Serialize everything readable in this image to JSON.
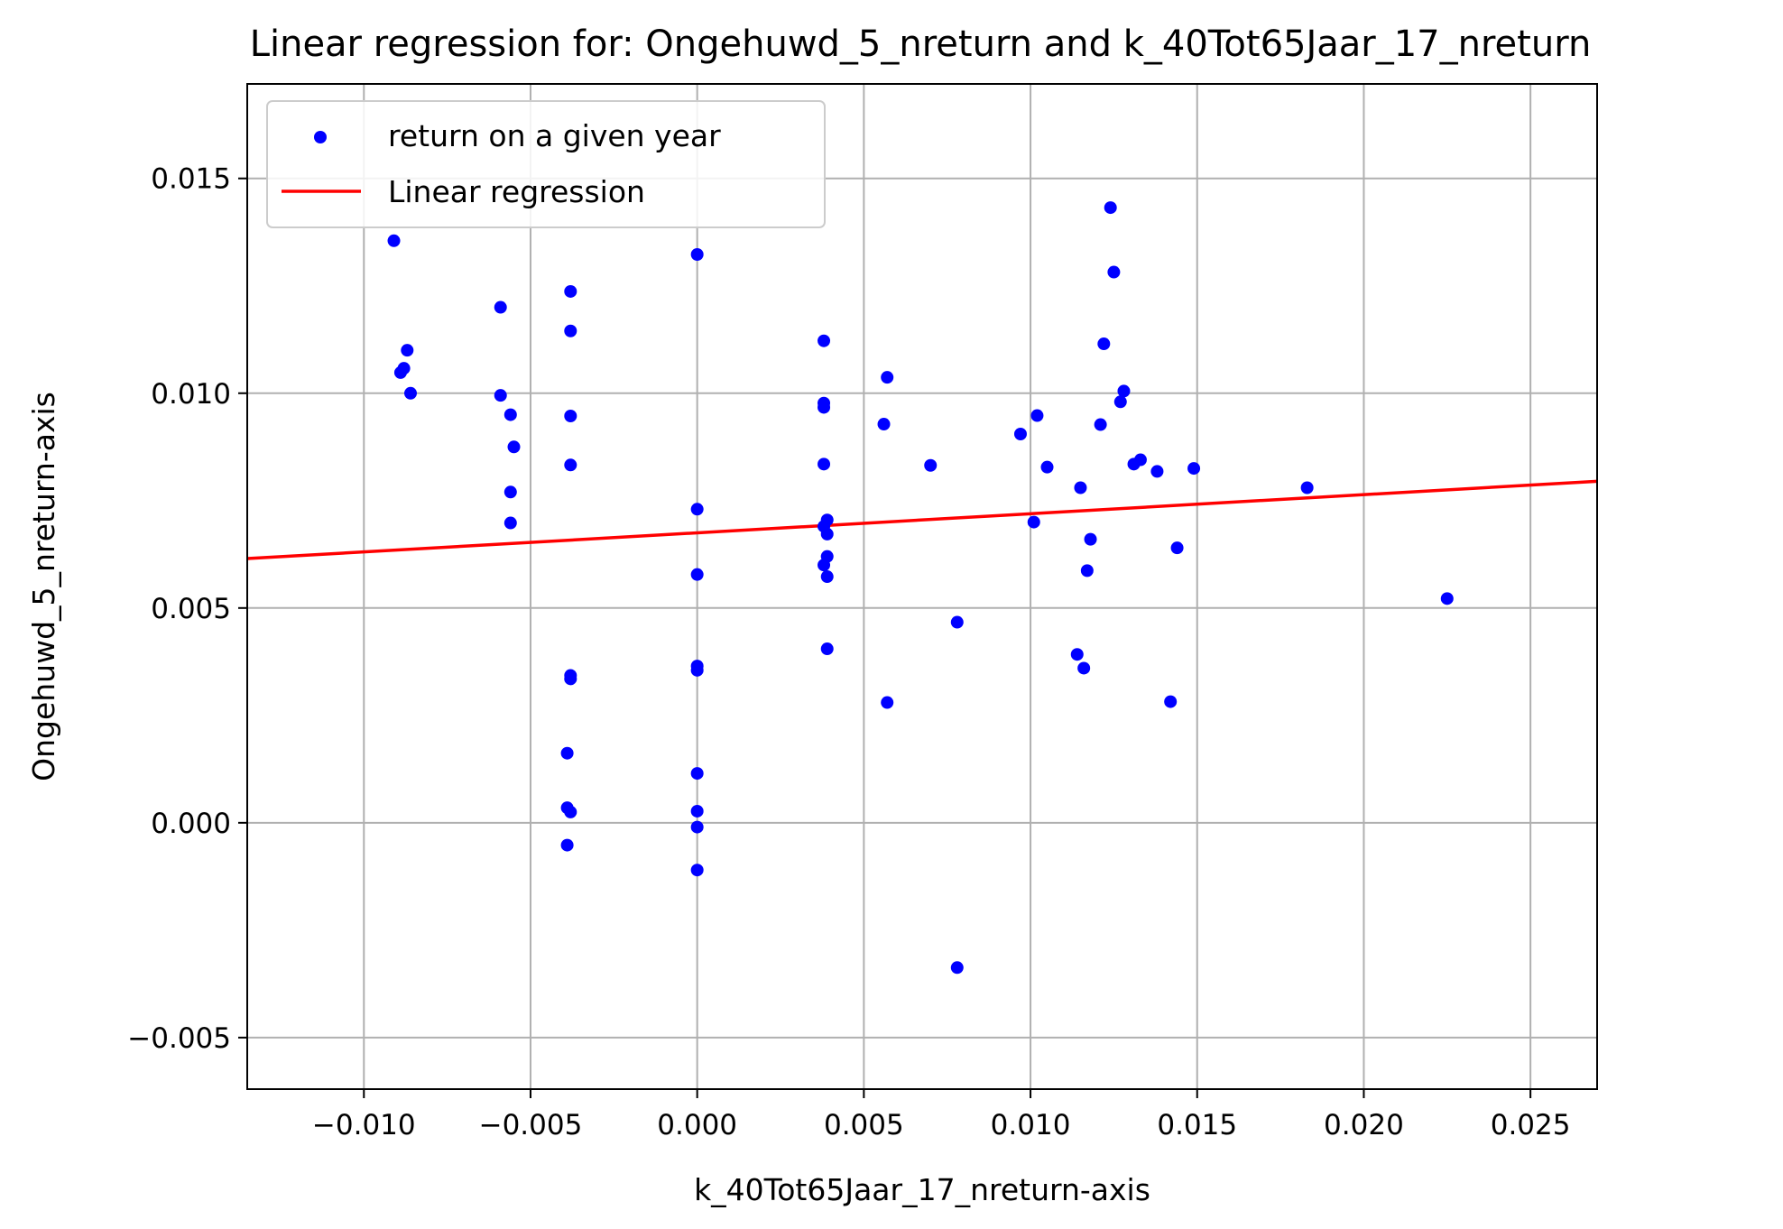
{
  "chart_data": {
    "type": "scatter",
    "title": "Linear regression for: Ongehuwd_5_nreturn and k_40Tot65Jaar_17_nreturn",
    "xlabel": "k_40Tot65Jaar_17_nreturn-axis",
    "ylabel": "Ongehuwd_5_nreturn-axis",
    "xlim": [
      -0.0135,
      0.027
    ],
    "ylim": [
      -0.0062,
      0.0172
    ],
    "grid": true,
    "legend_position": "top-left",
    "x_ticks": [
      -0.01,
      -0.005,
      0.0,
      0.005,
      0.01,
      0.015,
      0.02,
      0.025
    ],
    "x_tick_labels": [
      "−0.010",
      "−0.005",
      "0.000",
      "0.005",
      "0.010",
      "0.015",
      "0.020",
      "0.025"
    ],
    "y_ticks": [
      -0.005,
      0.0,
      0.005,
      0.01,
      0.015
    ],
    "y_tick_labels": [
      "−0.005",
      "0.000",
      "0.005",
      "0.010",
      "0.015"
    ],
    "series": [
      {
        "name": "return on a given year",
        "kind": "scatter",
        "color": "#0000ff",
        "points": [
          [
            -0.0091,
            0.01355
          ],
          [
            -0.0087,
            0.011
          ],
          [
            -0.0088,
            0.01058
          ],
          [
            -0.0089,
            0.01048
          ],
          [
            -0.0086,
            0.01
          ],
          [
            -0.0059,
            0.012
          ],
          [
            -0.0059,
            0.00995
          ],
          [
            -0.0056,
            0.0095
          ],
          [
            -0.0055,
            0.00875
          ],
          [
            -0.0056,
            0.0077
          ],
          [
            -0.0056,
            0.00698
          ],
          [
            -0.0038,
            0.01237
          ],
          [
            -0.0038,
            0.01145
          ],
          [
            -0.0038,
            0.00947
          ],
          [
            -0.0038,
            0.00833
          ],
          [
            -0.0038,
            0.00343
          ],
          [
            -0.0038,
            0.00335
          ],
          [
            -0.0039,
            0.00162
          ],
          [
            -0.0039,
            0.00035
          ],
          [
            -0.0038,
            0.00025
          ],
          [
            -0.0039,
            -0.00052
          ],
          [
            0.0,
            0.01323
          ],
          [
            0.0,
            0.0073
          ],
          [
            0.0,
            0.00578
          ],
          [
            0.0,
            0.00365
          ],
          [
            0.0,
            0.00355
          ],
          [
            0.0,
            0.00115
          ],
          [
            0.0,
            0.00027
          ],
          [
            0.0,
            -0.0001
          ],
          [
            0.0,
            -0.0011
          ],
          [
            0.0038,
            0.01122
          ],
          [
            0.0038,
            0.00977
          ],
          [
            0.0038,
            0.00967
          ],
          [
            0.0038,
            0.00835
          ],
          [
            0.0039,
            0.00705
          ],
          [
            0.0038,
            0.0069
          ],
          [
            0.0039,
            0.00672
          ],
          [
            0.0039,
            0.0062
          ],
          [
            0.0038,
            0.006
          ],
          [
            0.0039,
            0.00573
          ],
          [
            0.0039,
            0.00405
          ],
          [
            0.0057,
            0.01037
          ],
          [
            0.0056,
            0.00928
          ],
          [
            0.0057,
            0.0028
          ],
          [
            0.007,
            0.00832
          ],
          [
            0.0078,
            0.00467
          ],
          [
            0.0078,
            -0.00337
          ],
          [
            0.0097,
            0.00905
          ],
          [
            0.0102,
            0.00948
          ],
          [
            0.0105,
            0.00828
          ],
          [
            0.0101,
            0.007
          ],
          [
            0.0124,
            0.01432
          ],
          [
            0.0125,
            0.01282
          ],
          [
            0.0122,
            0.01115
          ],
          [
            0.0128,
            0.01005
          ],
          [
            0.0127,
            0.0098
          ],
          [
            0.0121,
            0.00927
          ],
          [
            0.0131,
            0.00835
          ],
          [
            0.0133,
            0.00845
          ],
          [
            0.0138,
            0.00818
          ],
          [
            0.0149,
            0.00825
          ],
          [
            0.0115,
            0.0078
          ],
          [
            0.0118,
            0.0066
          ],
          [
            0.0117,
            0.00587
          ],
          [
            0.0144,
            0.0064
          ],
          [
            0.0114,
            0.00392
          ],
          [
            0.0116,
            0.0036
          ],
          [
            0.0142,
            0.00282
          ],
          [
            0.0183,
            0.0078
          ],
          [
            0.0225,
            0.00522
          ]
        ]
      },
      {
        "name": "Linear regression",
        "kind": "line",
        "color": "#ff0000",
        "x": [
          -0.0135,
          0.027
        ],
        "y": [
          0.00615,
          0.00795
        ]
      }
    ]
  }
}
